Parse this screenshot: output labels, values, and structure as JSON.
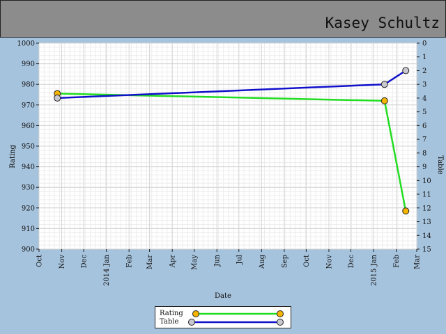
{
  "header": {
    "player_name": "Kasey Schultz"
  },
  "chart_data": {
    "type": "line",
    "xlabel": "Date",
    "ylabel": "Rating",
    "y2label": "Table",
    "xlim": [
      "2013-10-01",
      "2015-03-01"
    ],
    "ylim": [
      900,
      1000
    ],
    "y2lim": [
      0,
      15
    ],
    "y2_inverted": true,
    "grid": true,
    "legend_position": "bottom",
    "x_ticks": [
      {
        "date": "2013-10-01",
        "label": "Oct"
      },
      {
        "date": "2013-11-01",
        "label": "Nov"
      },
      {
        "date": "2013-12-01",
        "label": "Dec"
      },
      {
        "date": "2014-01-01",
        "label": "2014 Jan"
      },
      {
        "date": "2014-02-01",
        "label": "Feb"
      },
      {
        "date": "2014-03-01",
        "label": "Mar"
      },
      {
        "date": "2014-04-01",
        "label": "Apr"
      },
      {
        "date": "2014-05-01",
        "label": "May"
      },
      {
        "date": "2014-06-01",
        "label": "Jun"
      },
      {
        "date": "2014-07-01",
        "label": "Jul"
      },
      {
        "date": "2014-08-01",
        "label": "Aug"
      },
      {
        "date": "2014-09-01",
        "label": "Sep"
      },
      {
        "date": "2014-10-01",
        "label": "Oct"
      },
      {
        "date": "2014-11-01",
        "label": "Nov"
      },
      {
        "date": "2014-12-01",
        "label": "Dec"
      },
      {
        "date": "2015-01-01",
        "label": "2015 Jan"
      },
      {
        "date": "2015-02-01",
        "label": "Feb"
      },
      {
        "date": "2015-03-01",
        "label": "Mar"
      }
    ],
    "y_ticks": [
      "900",
      "910",
      "920",
      "930",
      "940",
      "950",
      "960",
      "970",
      "980",
      "990",
      "1000"
    ],
    "y2_ticks": [
      "0",
      "1",
      "2",
      "3",
      "4",
      "5",
      "6",
      "7",
      "8",
      "9",
      "10",
      "11",
      "12",
      "13",
      "14",
      "15"
    ],
    "series": [
      {
        "name": "Rating",
        "axis": "left",
        "color": "#22dd22",
        "marker_color": "#f5b400",
        "points": [
          {
            "x": "2013-10-26",
            "y": 975.5
          },
          {
            "x": "2015-01-16",
            "y": 972
          },
          {
            "x": "2015-02-14",
            "y": 918.5
          }
        ]
      },
      {
        "name": "Table",
        "axis": "right",
        "color": "#1111cc",
        "marker_color": "#c8c8d0",
        "points": [
          {
            "x": "2013-10-26",
            "y": 4
          },
          {
            "x": "2015-01-16",
            "y": 3
          },
          {
            "x": "2015-02-14",
            "y": 2
          }
        ]
      }
    ]
  }
}
